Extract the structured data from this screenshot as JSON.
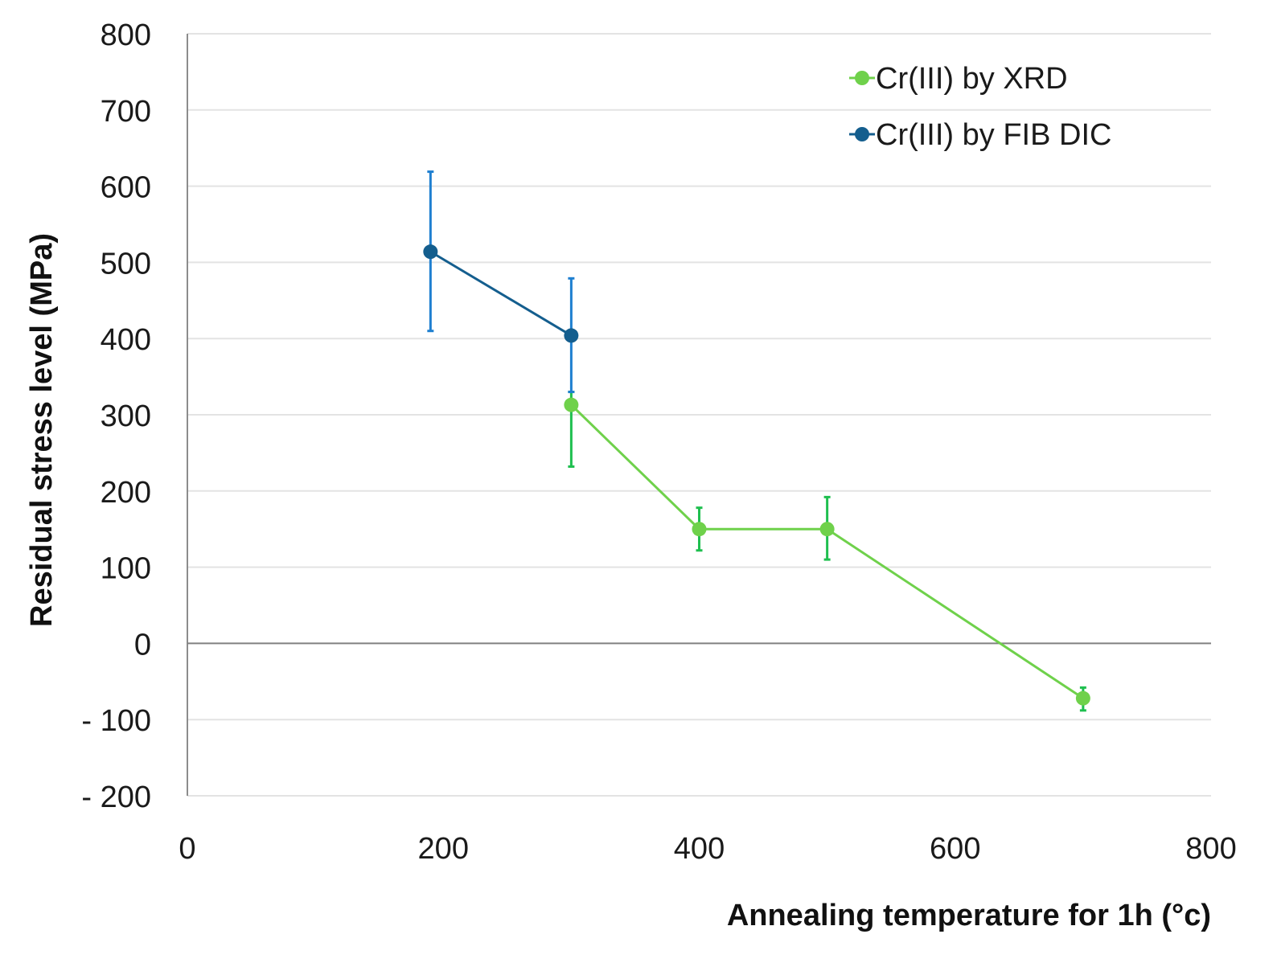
{
  "chart_data": {
    "type": "line",
    "xlabel": "Annealing temperature for 1h (°c)",
    "ylabel": "Residual stress level (MPa)",
    "xlim": [
      0,
      800
    ],
    "ylim": [
      -200,
      800
    ],
    "x_ticks": [
      0,
      200,
      400,
      600,
      800
    ],
    "y_ticks": [
      -200,
      -100,
      0,
      100,
      200,
      300,
      400,
      500,
      600,
      700,
      800
    ],
    "x_tick_labels": [
      "0",
      "200",
      "400",
      "600",
      "800"
    ],
    "y_tick_labels": [
      "- 200",
      "- 100",
      "0",
      "100",
      "200",
      "300",
      "400",
      "500",
      "600",
      "700",
      "800"
    ],
    "grid": true,
    "legend_position": "top-right",
    "series": [
      {
        "name": "Cr(III) by XRD",
        "color": "#6fd14b",
        "error_color": "#1fbf4f",
        "x": [
          300,
          400,
          500,
          700
        ],
        "y": [
          313,
          150,
          150,
          -72
        ],
        "err_low": [
          232,
          122,
          110,
          -88
        ],
        "err_high": [
          330,
          178,
          192,
          -58
        ]
      },
      {
        "name": "Cr(III) by FIB DIC",
        "color": "#145e8e",
        "error_color": "#1e7fd0",
        "x": [
          190,
          300
        ],
        "y": [
          514,
          404
        ],
        "err_low": [
          410,
          330
        ],
        "err_high": [
          619,
          479
        ]
      }
    ]
  }
}
